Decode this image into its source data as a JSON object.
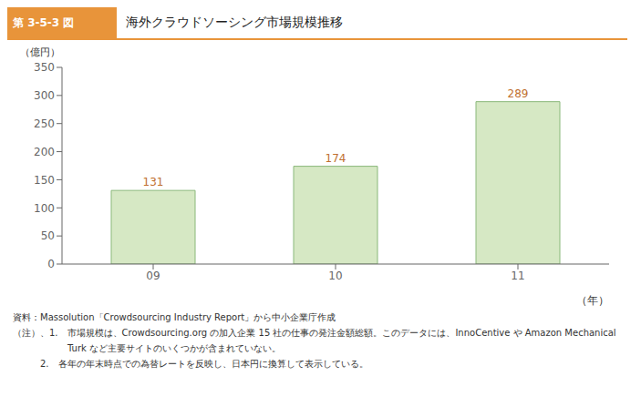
{
  "chart_data": {
    "type": "bar",
    "title": "海外クラウドソーシング市場規模推移",
    "subtitle": "第 3-5-3 図",
    "categories": [
      "09",
      "10",
      "11"
    ],
    "values": [
      131,
      174,
      289
    ],
    "color": "#d6e8c4",
    "xlabel": "（年）",
    "ylabel": "（億円）",
    "ylim": [
      0,
      350
    ],
    "yticks": [
      0,
      50,
      100,
      150,
      200,
      250,
      300,
      350
    ],
    "grid": false,
    "data_labels": true,
    "annotations": [
      "資料：Massolution「Crowdsourcing Industry Report」から中小企業庁作成",
      "（注）、1.　市場規模は、Crowdsourcing.org の加入企業 15 社の仕事の発注金額総額。このデータには、InnoCentive や Amazon Mechanical",
      "　　　　　　Turk など主要サイトのいくつかが含まれていない。",
      "　　　2.　各年の年末時点での為替レートを反映し、日本円に換算して表示している。"
    ]
  }
}
